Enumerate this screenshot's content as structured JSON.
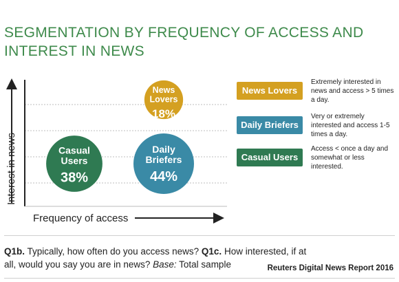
{
  "title": "SEGMENTATION BY FREQUENCY OF ACCESS AND INTEREST IN NEWS",
  "chart_data": {
    "type": "bubble",
    "xlabel": "Frequency of access",
    "ylabel": "Interest in news",
    "grid": true,
    "series": [
      {
        "name": "Casual Users",
        "label_lines": [
          "Casual",
          "Users"
        ],
        "value": 38,
        "value_label": "38%",
        "x": "low",
        "y": "low",
        "color": "#2f7a52"
      },
      {
        "name": "Daily Briefers",
        "label_lines": [
          "Daily",
          "Briefers"
        ],
        "value": 44,
        "value_label": "44%",
        "x": "high",
        "y": "low",
        "color": "#3a8aa6"
      },
      {
        "name": "News Lovers",
        "label_lines": [
          "News",
          "Lovers"
        ],
        "value": 18,
        "value_label": "18%",
        "x": "high",
        "y": "high",
        "color": "#d4a021"
      }
    ]
  },
  "legend": [
    {
      "label": "News Lovers",
      "color": "#d4a021",
      "description": "Extremely interested in news and access > 5 times a day."
    },
    {
      "label": "Daily Briefers",
      "color": "#3a8aa6",
      "description": "Very or extremely interested and access 1-5 times a day."
    },
    {
      "label": "Casual Users",
      "color": "#2f7a52",
      "description": "Access < once a day and somewhat or less interested."
    }
  ],
  "question": {
    "q1b_code": "Q1b.",
    "q1b_text": " Typically, how often do you access news? ",
    "q1c_code": "Q1c.",
    "q1c_text": " How interested, if at all, would you say you are in news? ",
    "base_label": "Base:",
    "base_text": " Total sample"
  },
  "source": "Reuters Digital News Report 2016"
}
